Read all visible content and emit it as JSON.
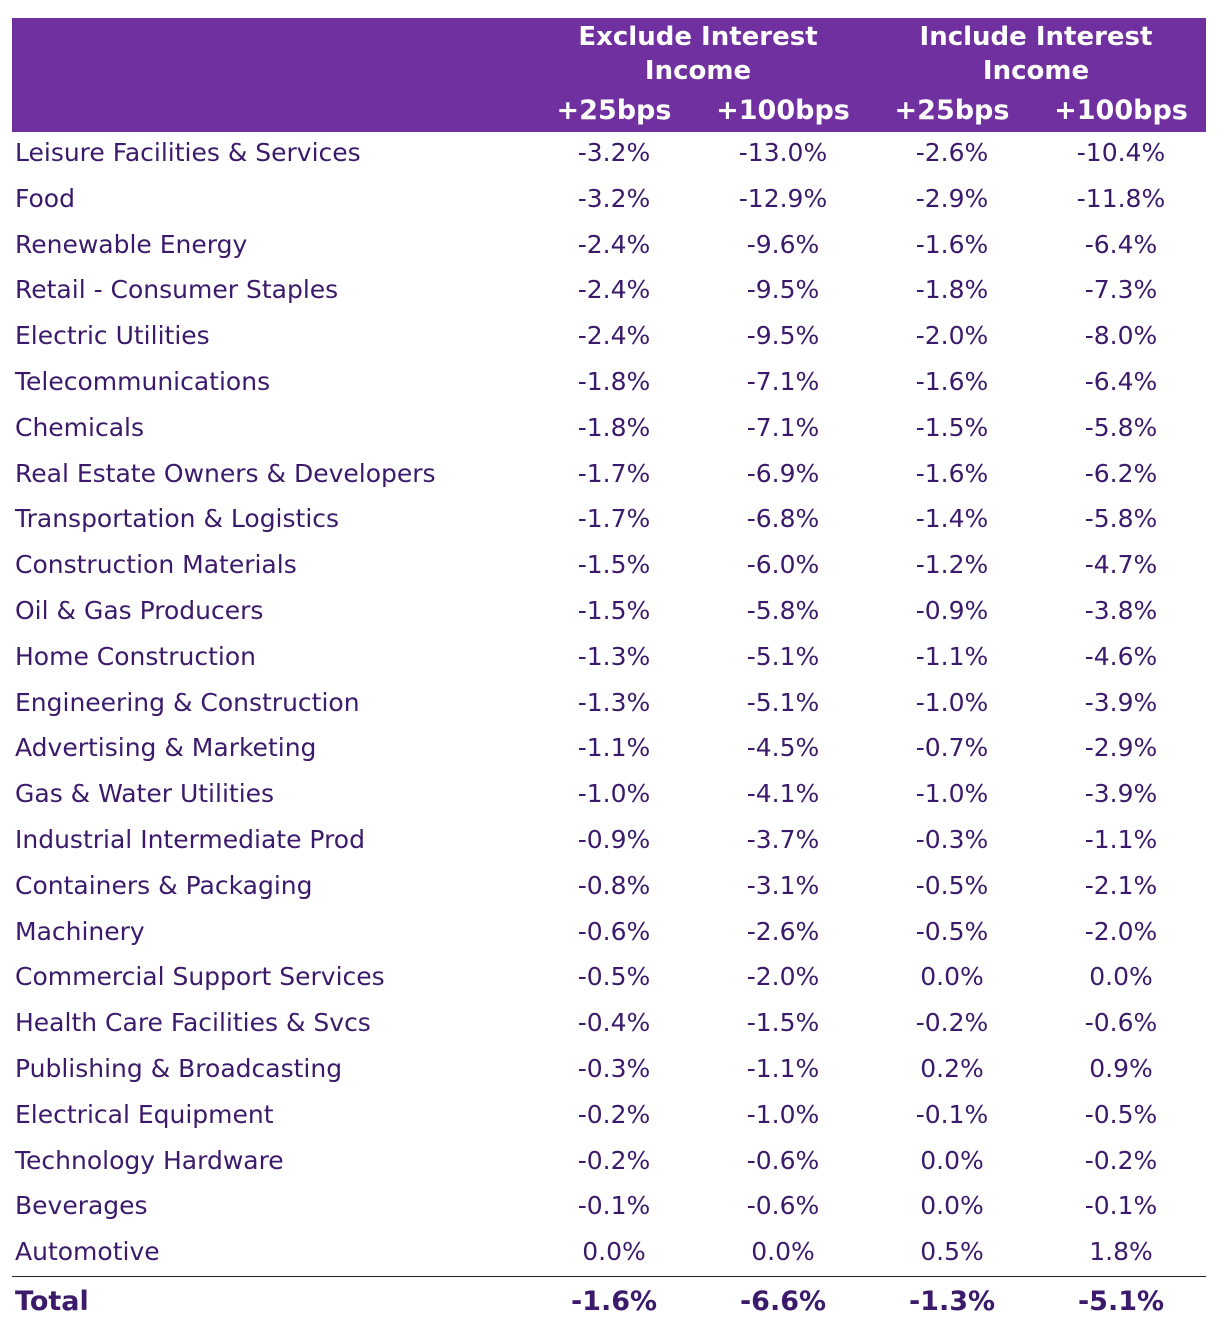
{
  "chart_data": {
    "type": "table",
    "column_groups": [
      "Exclude Interest Income",
      "Include Interest Income"
    ],
    "columns": [
      "+25bps",
      "+100bps",
      "+25bps",
      "+100bps"
    ],
    "rows": [
      {
        "label": "Leisure Facilities & Services",
        "values": [
          "-3.2%",
          "-13.0%",
          "-2.6%",
          "-10.4%"
        ]
      },
      {
        "label": "Food",
        "values": [
          "-3.2%",
          "-12.9%",
          "-2.9%",
          "-11.8%"
        ]
      },
      {
        "label": "Renewable Energy",
        "values": [
          "-2.4%",
          "-9.6%",
          "-1.6%",
          "-6.4%"
        ]
      },
      {
        "label": "Retail - Consumer Staples",
        "values": [
          "-2.4%",
          "-9.5%",
          "-1.8%",
          "-7.3%"
        ]
      },
      {
        "label": "Electric Utilities",
        "values": [
          "-2.4%",
          "-9.5%",
          "-2.0%",
          "-8.0%"
        ]
      },
      {
        "label": "Telecommunications",
        "values": [
          "-1.8%",
          "-7.1%",
          "-1.6%",
          "-6.4%"
        ]
      },
      {
        "label": "Chemicals",
        "values": [
          "-1.8%",
          "-7.1%",
          "-1.5%",
          "-5.8%"
        ]
      },
      {
        "label": "Real Estate Owners & Developers",
        "values": [
          "-1.7%",
          "-6.9%",
          "-1.6%",
          "-6.2%"
        ]
      },
      {
        "label": "Transportation & Logistics",
        "values": [
          "-1.7%",
          "-6.8%",
          "-1.4%",
          "-5.8%"
        ]
      },
      {
        "label": "Construction Materials",
        "values": [
          "-1.5%",
          "-6.0%",
          "-1.2%",
          "-4.7%"
        ]
      },
      {
        "label": "Oil & Gas Producers",
        "values": [
          "-1.5%",
          "-5.8%",
          "-0.9%",
          "-3.8%"
        ]
      },
      {
        "label": "Home Construction",
        "values": [
          "-1.3%",
          "-5.1%",
          "-1.1%",
          "-4.6%"
        ]
      },
      {
        "label": "Engineering & Construction",
        "values": [
          "-1.3%",
          "-5.1%",
          "-1.0%",
          "-3.9%"
        ]
      },
      {
        "label": "Advertising & Marketing",
        "values": [
          "-1.1%",
          "-4.5%",
          "-0.7%",
          "-2.9%"
        ]
      },
      {
        "label": "Gas & Water Utilities",
        "values": [
          "-1.0%",
          "-4.1%",
          "-1.0%",
          "-3.9%"
        ]
      },
      {
        "label": "Industrial Intermediate Prod",
        "values": [
          "-0.9%",
          "-3.7%",
          "-0.3%",
          "-1.1%"
        ]
      },
      {
        "label": "Containers & Packaging",
        "values": [
          "-0.8%",
          "-3.1%",
          "-0.5%",
          "-2.1%"
        ]
      },
      {
        "label": "Machinery",
        "values": [
          "-0.6%",
          "-2.6%",
          "-0.5%",
          "-2.0%"
        ]
      },
      {
        "label": "Commercial Support Services",
        "values": [
          "-0.5%",
          "-2.0%",
          "0.0%",
          "0.0%"
        ]
      },
      {
        "label": "Health Care Facilities & Svcs",
        "values": [
          "-0.4%",
          "-1.5%",
          "-0.2%",
          "-0.6%"
        ]
      },
      {
        "label": "Publishing & Broadcasting",
        "values": [
          "-0.3%",
          "-1.1%",
          "0.2%",
          "0.9%"
        ]
      },
      {
        "label": "Electrical Equipment",
        "values": [
          "-0.2%",
          "-1.0%",
          "-0.1%",
          "-0.5%"
        ]
      },
      {
        "label": "Technology Hardware",
        "values": [
          "-0.2%",
          "-0.6%",
          "0.0%",
          "-0.2%"
        ]
      },
      {
        "label": "Beverages",
        "values": [
          "-0.1%",
          "-0.6%",
          "0.0%",
          "-0.1%"
        ]
      },
      {
        "label": "Automotive",
        "values": [
          "0.0%",
          "0.0%",
          "0.5%",
          "1.8%"
        ]
      }
    ],
    "total": {
      "label": "Total",
      "values": [
        "-1.6%",
        "-6.6%",
        "-1.3%",
        "-5.1%"
      ]
    },
    "colors": {
      "header_bg": "#7030a0",
      "header_text": "#ffffff",
      "body_text": "#3b1a6b"
    }
  }
}
